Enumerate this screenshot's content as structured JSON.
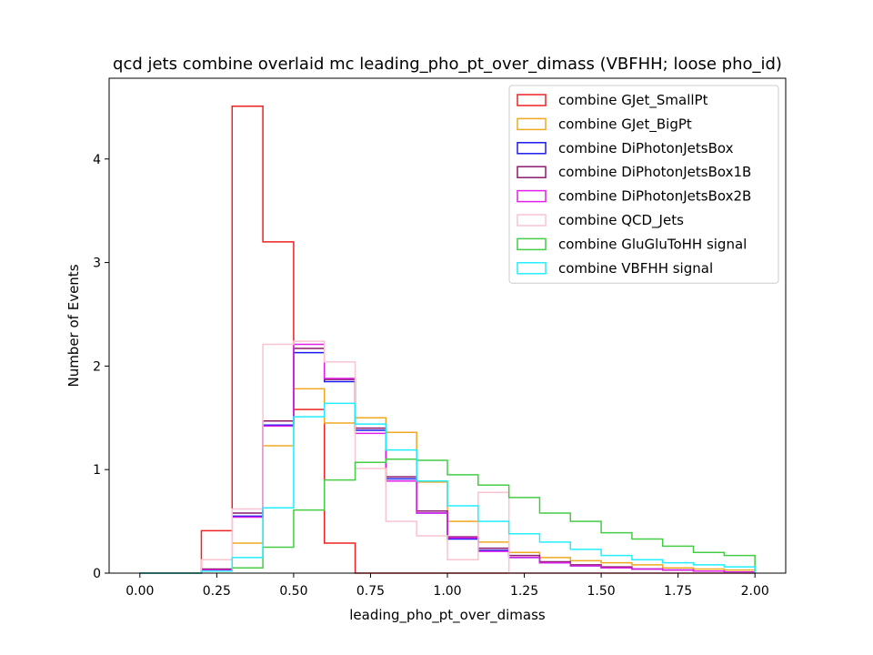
{
  "chart_data": {
    "type": "histogram-step",
    "title": "qcd jets combine overlaid mc leading_pho_pt_over_dimass (VBFHH; loose pho_id)",
    "xlabel": "leading_pho_pt_over_dimass",
    "ylabel": "Number of Events",
    "xlim": [
      -0.1,
      2.1
    ],
    "ylim": [
      0,
      4.78
    ],
    "xticks": [
      0.0,
      0.25,
      0.5,
      0.75,
      1.0,
      1.25,
      1.5,
      1.75,
      2.0
    ],
    "xtick_labels": [
      "0.00",
      "0.25",
      "0.50",
      "0.75",
      "1.00",
      "1.25",
      "1.50",
      "1.75",
      "2.00"
    ],
    "yticks": [
      0,
      1,
      2,
      3,
      4
    ],
    "ytick_labels": [
      "0",
      "1",
      "2",
      "3",
      "4"
    ],
    "legend_position": "top-right",
    "bin_edges": [
      0.0,
      0.1,
      0.2,
      0.3,
      0.4,
      0.5,
      0.6,
      0.7,
      0.8,
      0.9,
      1.0,
      1.1,
      1.2,
      1.3,
      1.4,
      1.5,
      1.6,
      1.7,
      1.8,
      1.9,
      2.0
    ],
    "series": [
      {
        "name": "combine GJet_SmallPt",
        "color": "#ee2222",
        "values": [
          0,
          0,
          0.41,
          4.51,
          3.2,
          1.58,
          0.29,
          0,
          0,
          0,
          0,
          0,
          0,
          0,
          0,
          0,
          0,
          0,
          0,
          0
        ]
      },
      {
        "name": "combine GJet_BigPt",
        "color": "#f0a820",
        "values": [
          0,
          0,
          0.03,
          0.29,
          1.23,
          1.78,
          1.45,
          1.5,
          1.36,
          0.88,
          0.5,
          0.3,
          0.2,
          0.15,
          0.12,
          0.1,
          0.08,
          0.05,
          0.04,
          0.03
        ]
      },
      {
        "name": "combine DiPhotonJetsBox",
        "color": "#1a1aee",
        "values": [
          0,
          0,
          0.03,
          0.55,
          1.43,
          2.13,
          1.85,
          1.38,
          0.91,
          0.58,
          0.33,
          0.22,
          0.15,
          0.1,
          0.07,
          0.05,
          0.04,
          0.03,
          0.02,
          0.01
        ]
      },
      {
        "name": "combine DiPhotonJetsBox1B",
        "color": "#8b1a6b",
        "values": [
          0,
          0,
          0.04,
          0.58,
          1.47,
          2.17,
          1.87,
          1.4,
          0.93,
          0.6,
          0.35,
          0.24,
          0.17,
          0.11,
          0.08,
          0.06,
          0.04,
          0.03,
          0.02,
          0.01
        ]
      },
      {
        "name": "combine DiPhotonJetsBox2B",
        "color": "#e020e8",
        "values": [
          0,
          0,
          0.03,
          0.54,
          1.42,
          2.21,
          1.88,
          1.35,
          0.89,
          0.58,
          0.34,
          0.21,
          0.15,
          0.1,
          0.07,
          0.05,
          0.04,
          0.03,
          0.02,
          0.01
        ]
      },
      {
        "name": "combine QCD_Jets",
        "color": "#f8c4d0",
        "values": [
          0,
          0,
          0.13,
          0.62,
          2.21,
          2.24,
          2.04,
          1.01,
          0.5,
          0.36,
          0.13,
          0.78,
          0,
          0,
          0,
          0,
          0,
          0,
          0,
          0
        ]
      },
      {
        "name": "combine GluGluToHH signal",
        "color": "#44cc44",
        "values": [
          0,
          0,
          0.02,
          0.05,
          0.25,
          0.61,
          0.9,
          1.07,
          1.1,
          1.09,
          0.95,
          0.85,
          0.73,
          0.58,
          0.5,
          0.39,
          0.33,
          0.26,
          0.2,
          0.17
        ]
      },
      {
        "name": "combine VBFHH signal",
        "color": "#22eeff",
        "values": [
          0,
          0,
          0.02,
          0.15,
          0.63,
          1.51,
          1.64,
          1.44,
          1.19,
          0.89,
          0.65,
          0.5,
          0.38,
          0.3,
          0.23,
          0.17,
          0.13,
          0.1,
          0.08,
          0.06
        ]
      }
    ]
  }
}
